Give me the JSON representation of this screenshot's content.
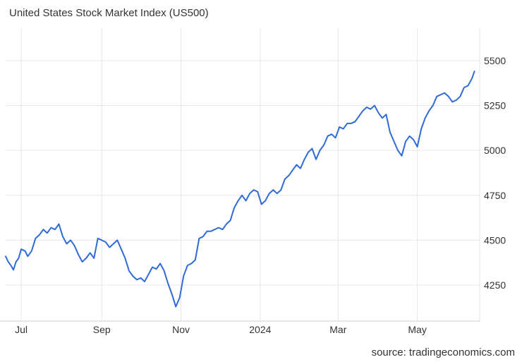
{
  "chart_data": {
    "type": "line",
    "title": "United States Stock Market Index (US500)",
    "source": "source: tradingeconomics.com",
    "xlabel": "",
    "ylabel": "",
    "xlim": [
      "2023-06-19",
      "2024-06-18"
    ],
    "ylim": [
      4050,
      5680
    ],
    "x_ticks": [
      {
        "label": "Jul",
        "date": "2023-07-01"
      },
      {
        "label": "Sep",
        "date": "2023-09-01"
      },
      {
        "label": "Nov",
        "date": "2023-11-01"
      },
      {
        "label": "2024",
        "date": "2024-01-01"
      },
      {
        "label": "Mar",
        "date": "2024-03-01"
      },
      {
        "label": "May",
        "date": "2024-05-01"
      }
    ],
    "y_ticks": [
      4250,
      4500,
      4750,
      5000,
      5250,
      5500
    ],
    "grid": true,
    "line_color": "#2e6bd8",
    "series": [
      {
        "name": "",
        "x": [
          "2023-06-19",
          "2023-06-21",
          "2023-06-23",
          "2023-06-25",
          "2023-06-27",
          "2023-06-29",
          "2023-07-01",
          "2023-07-04",
          "2023-07-06",
          "2023-07-09",
          "2023-07-12",
          "2023-07-15",
          "2023-07-18",
          "2023-07-21",
          "2023-07-24",
          "2023-07-27",
          "2023-07-30",
          "2023-08-02",
          "2023-08-05",
          "2023-08-08",
          "2023-08-11",
          "2023-08-14",
          "2023-08-17",
          "2023-08-20",
          "2023-08-23",
          "2023-08-26",
          "2023-08-29",
          "2023-09-01",
          "2023-09-04",
          "2023-09-07",
          "2023-09-10",
          "2023-09-13",
          "2023-09-16",
          "2023-09-19",
          "2023-09-22",
          "2023-09-25",
          "2023-09-28",
          "2023-10-01",
          "2023-10-04",
          "2023-10-07",
          "2023-10-10",
          "2023-10-13",
          "2023-10-16",
          "2023-10-19",
          "2023-10-22",
          "2023-10-25",
          "2023-10-28",
          "2023-10-31",
          "2023-11-03",
          "2023-11-06",
          "2023-11-09",
          "2023-11-12",
          "2023-11-15",
          "2023-11-18",
          "2023-11-21",
          "2023-11-24",
          "2023-11-27",
          "2023-11-30",
          "2023-12-03",
          "2023-12-06",
          "2023-12-09",
          "2023-12-12",
          "2023-12-15",
          "2023-12-18",
          "2023-12-21",
          "2023-12-24",
          "2023-12-27",
          "2023-12-30",
          "2024-01-02",
          "2024-01-05",
          "2024-01-08",
          "2024-01-11",
          "2024-01-14",
          "2024-01-17",
          "2024-01-20",
          "2024-01-23",
          "2024-01-26",
          "2024-01-29",
          "2024-02-01",
          "2024-02-04",
          "2024-02-07",
          "2024-02-10",
          "2024-02-13",
          "2024-02-16",
          "2024-02-19",
          "2024-02-22",
          "2024-02-25",
          "2024-02-28",
          "2024-03-02",
          "2024-03-05",
          "2024-03-08",
          "2024-03-11",
          "2024-03-14",
          "2024-03-17",
          "2024-03-20",
          "2024-03-23",
          "2024-03-26",
          "2024-03-29",
          "2024-04-01",
          "2024-04-04",
          "2024-04-07",
          "2024-04-10",
          "2024-04-13",
          "2024-04-16",
          "2024-04-19",
          "2024-04-22",
          "2024-04-25",
          "2024-04-28",
          "2024-05-01",
          "2024-05-04",
          "2024-05-07",
          "2024-05-10",
          "2024-05-13",
          "2024-05-16",
          "2024-05-19",
          "2024-05-22",
          "2024-05-25",
          "2024-05-28",
          "2024-05-31",
          "2024-06-03",
          "2024-06-06",
          "2024-06-09",
          "2024-06-12",
          "2024-06-14"
        ],
        "values": [
          4410,
          4380,
          4360,
          4335,
          4380,
          4400,
          4450,
          4440,
          4410,
          4440,
          4510,
          4530,
          4560,
          4540,
          4570,
          4560,
          4590,
          4520,
          4480,
          4500,
          4470,
          4420,
          4380,
          4400,
          4430,
          4400,
          4510,
          4500,
          4490,
          4460,
          4480,
          4500,
          4450,
          4400,
          4330,
          4300,
          4280,
          4290,
          4270,
          4310,
          4350,
          4340,
          4370,
          4330,
          4260,
          4200,
          4130,
          4180,
          4300,
          4360,
          4370,
          4390,
          4510,
          4520,
          4550,
          4550,
          4560,
          4570,
          4560,
          4590,
          4610,
          4680,
          4720,
          4750,
          4720,
          4760,
          4780,
          4770,
          4700,
          4720,
          4760,
          4780,
          4760,
          4780,
          4840,
          4860,
          4890,
          4920,
          4900,
          4950,
          4990,
          5010,
          4950,
          5000,
          5030,
          5080,
          5090,
          5070,
          5130,
          5120,
          5150,
          5150,
          5160,
          5190,
          5220,
          5240,
          5230,
          5250,
          5210,
          5180,
          5200,
          5100,
          5050,
          5000,
          4970,
          5050,
          5080,
          5060,
          5020,
          5120,
          5180,
          5220,
          5250,
          5300,
          5310,
          5320,
          5300,
          5270,
          5280,
          5300,
          5350,
          5360,
          5400,
          5440
        ]
      }
    ]
  }
}
